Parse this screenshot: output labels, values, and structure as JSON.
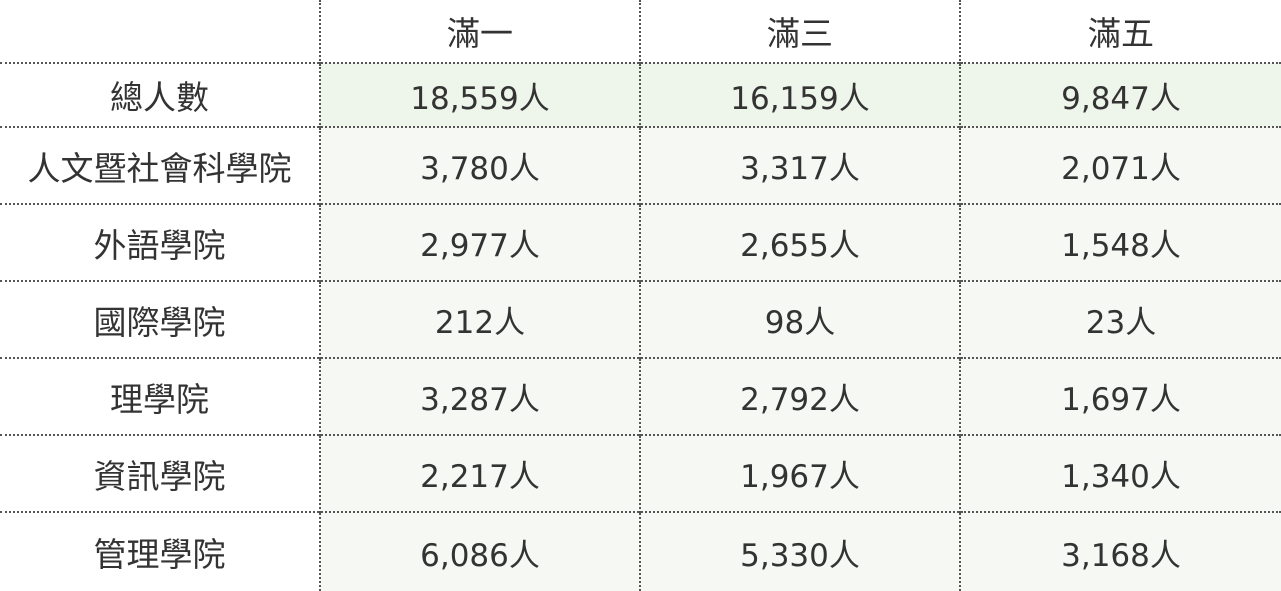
{
  "table": {
    "columns": [
      "",
      "滿一",
      "滿三",
      "滿五"
    ],
    "rows": [
      {
        "label": "總人數",
        "values": [
          "18,559人",
          "16,159人",
          "9,847人"
        ]
      },
      {
        "label": "人文暨社會科學院",
        "values": [
          "3,780人",
          "3,317人",
          "2,071人"
        ]
      },
      {
        "label": "外語學院",
        "values": [
          "2,977人",
          "2,655人",
          "1,548人"
        ]
      },
      {
        "label": "國際學院",
        "values": [
          "212人",
          "98人",
          "23人"
        ]
      },
      {
        "label": "理學院",
        "values": [
          "3,287人",
          "2,792人",
          "1,697人"
        ]
      },
      {
        "label": "資訊學院",
        "values": [
          "2,217人",
          "1,967人",
          "1,340人"
        ]
      },
      {
        "label": "管理學院",
        "values": [
          "6,086人",
          "5,330人",
          "3,168人"
        ]
      }
    ]
  },
  "colors": {
    "header_row_highlight": "#eef5ea",
    "cell_background": "#f6f9f3",
    "text": "#333333",
    "divider": "#555555"
  }
}
